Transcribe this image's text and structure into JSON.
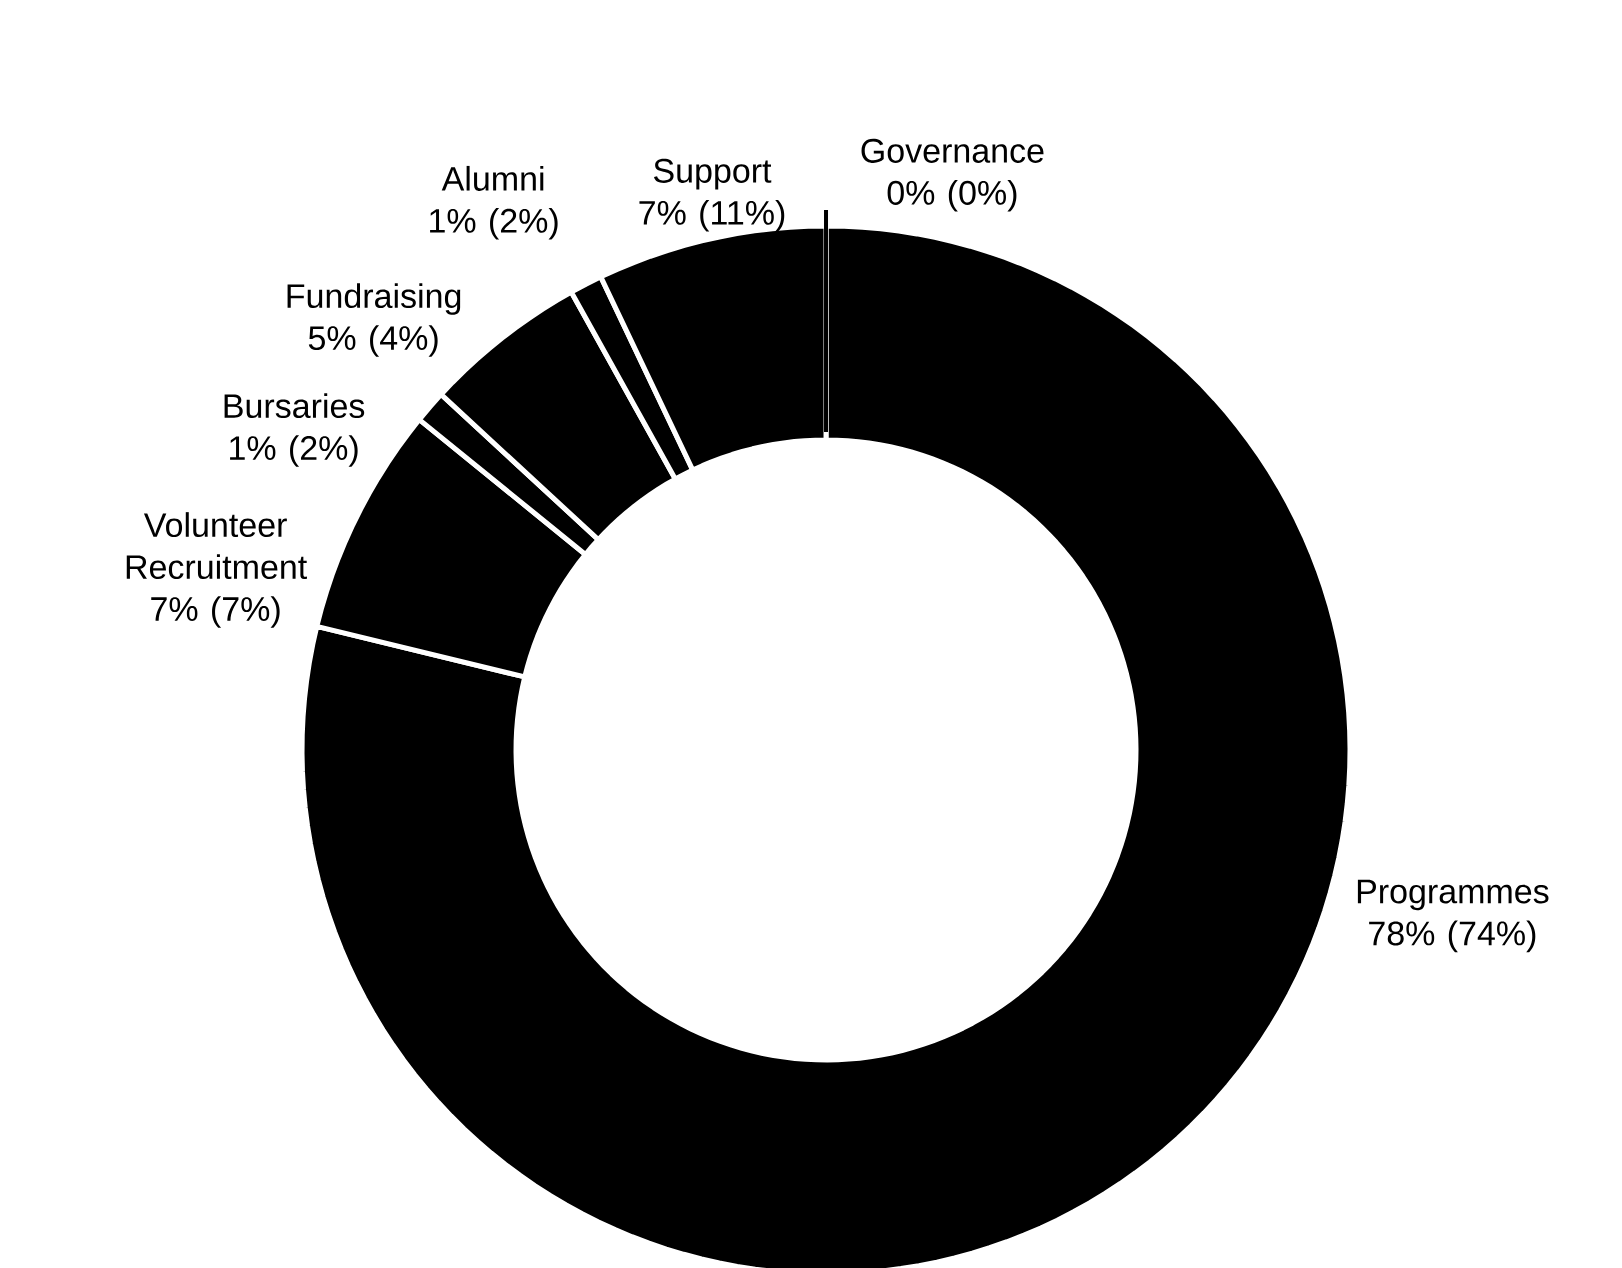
{
  "chart_data": {
    "type": "donut",
    "categories": [
      "Programmes",
      "Volunteer Recruitment",
      "Bursaries",
      "Fundraising",
      "Alumni",
      "Support",
      "Governance"
    ],
    "values": [
      78,
      7,
      1,
      5,
      1,
      7,
      0
    ],
    "value_labels": [
      "78% (74%)",
      "7% (7%)",
      "1% (2%)",
      "5% (4%)",
      "1% (2%)",
      "7% (11%)",
      "0% (0%)"
    ],
    "colors": [
      "#000000",
      "#000000",
      "#000000",
      "#000000",
      "#000000",
      "#000000",
      "#000000"
    ]
  }
}
